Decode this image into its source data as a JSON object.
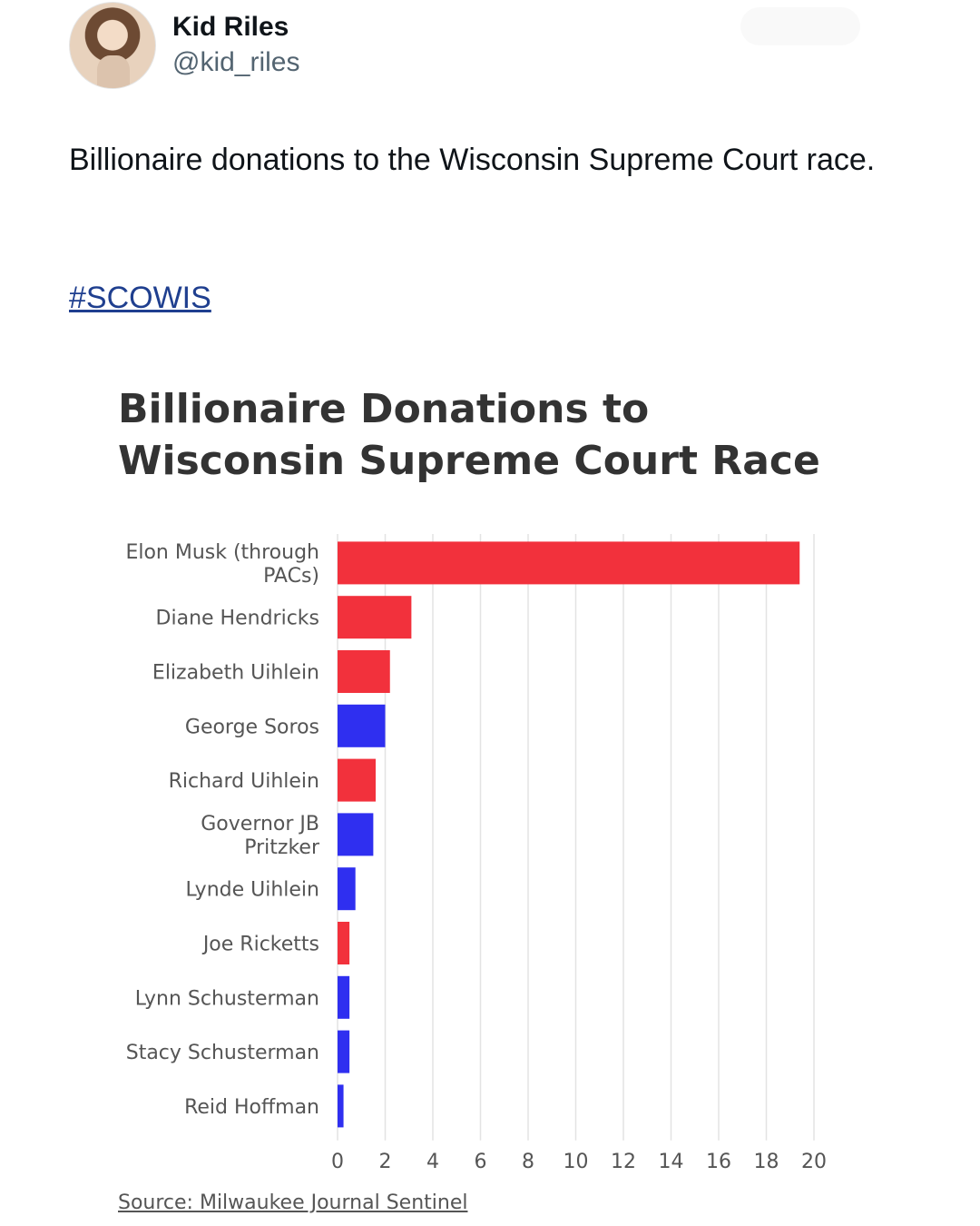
{
  "author": {
    "display_name": "Kid Riles",
    "handle": "@kid_riles",
    "avatar_icon": "profile-photo-icon"
  },
  "follow_button_label": "",
  "tweet": {
    "text": "Billionaire donations to the Wisconsin Supreme Court race.",
    "hashtag": "#SCOWIS"
  },
  "colors": {
    "red": "#f2313c",
    "blue": "#2f2ff0",
    "grid": "#e3e3e3",
    "link": "#1f3f8f"
  },
  "chart_data": {
    "type": "bar",
    "orientation": "horizontal",
    "title_line1": "Billionaire Donations to",
    "title_line2": "Wisconsin Supreme Court Race",
    "categories": [
      [
        "Elon Musk (through",
        "PACs)"
      ],
      [
        "Diane Hendricks"
      ],
      [
        "Elizabeth Uihlein"
      ],
      [
        "George Soros"
      ],
      [
        "Richard Uihlein"
      ],
      [
        "Governor JB",
        "Pritzker"
      ],
      [
        "Lynde Uihlein"
      ],
      [
        "Joe Ricketts"
      ],
      [
        "Lynn Schusterman"
      ],
      [
        "Stacy Schusterman"
      ],
      [
        "Reid Hoffman"
      ]
    ],
    "values": [
      19.4,
      3.1,
      2.2,
      2.0,
      1.6,
      1.5,
      0.75,
      0.5,
      0.5,
      0.5,
      0.25
    ],
    "bar_colors": [
      "red",
      "red",
      "red",
      "blue",
      "red",
      "blue",
      "blue",
      "red",
      "blue",
      "blue",
      "blue"
    ],
    "xlim": [
      0,
      20
    ],
    "xticks": [
      0,
      2,
      4,
      6,
      8,
      10,
      12,
      14,
      16,
      18,
      20
    ],
    "grid": "vertical",
    "source": "Source: Milwaukee Journal Sentinel"
  }
}
